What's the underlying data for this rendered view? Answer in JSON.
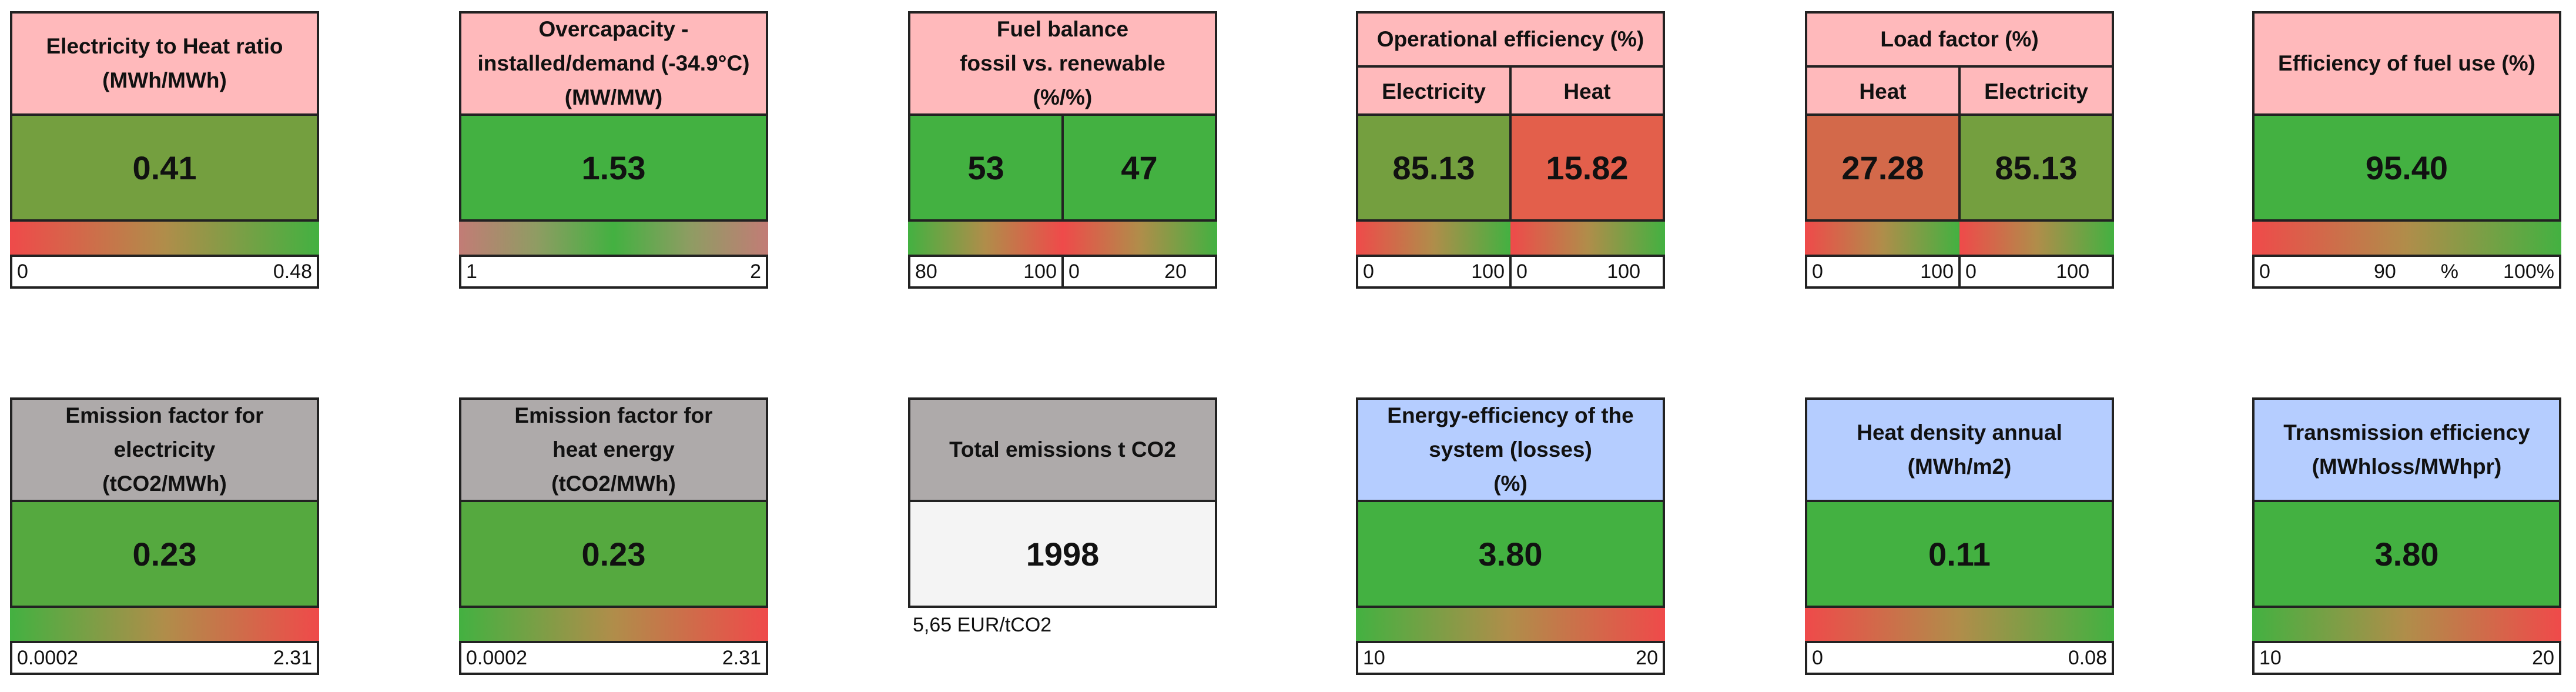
{
  "colors": {
    "header_pink": "#ffb9bb",
    "header_grey": "#aeaaaa",
    "header_blue": "#b5cdff",
    "good_green": "#43b141",
    "bad_red": "#ef5148",
    "olive": "#749f3f",
    "neutral_box": "#f4f4f4"
  },
  "cards": {
    "elec_heat_ratio": {
      "title": "Electricity to Heat ratio\n(MWh/MWh)",
      "value": "0.41",
      "scale_min": "0",
      "scale_max": "0.48"
    },
    "overcapacity": {
      "title": "Overcapacity -\ninstalled/demand (-34.9°C)\n(MW/MW)",
      "value": "1.53",
      "scale_min": "1",
      "scale_max": "2"
    },
    "fuel_balance": {
      "title": "Fuel balance\nfossil vs. renewable\n(%/%)",
      "value_fossil": "53",
      "value_renewable": "47",
      "scale1_a": "80",
      "scale1_b": "100",
      "scale2_a": "0",
      "scale2_b": "20"
    },
    "operational_efficiency": {
      "title": "Operational efficiency (%)",
      "sub1": "Electricity",
      "sub2": "Heat",
      "value1": "85.13",
      "value2": "15.82",
      "scale1_min": "0",
      "scale1_max": "100",
      "scale2_min": "0",
      "scale2_max": "100"
    },
    "load_factor": {
      "title": "Load factor (%)",
      "sub1": "Heat",
      "sub2": "Electricity",
      "value1": "27.28",
      "value2": "85.13",
      "scale1_min": "0",
      "scale1_max": "100",
      "scale2_min": "0",
      "scale2_max": "100"
    },
    "fuel_use_efficiency": {
      "title": "Efficiency of fuel use (%)",
      "value": "95.40",
      "scale_min": "0",
      "scale_mid": "90",
      "scale_unit": "%",
      "scale_max": "100%"
    },
    "ef_electricity": {
      "title": "Emission factor for\nelectricity\n(tCO2/MWh)",
      "value": "0.23",
      "scale_min": "0.0002",
      "scale_max": "2.31"
    },
    "ef_heat": {
      "title": "Emission factor for\nheat energy\n(tCO2/MWh)",
      "value": "0.23",
      "scale_min": "0.0002",
      "scale_max": "2.31"
    },
    "total_emissions": {
      "title": "Total emissions t CO2",
      "value": "1998",
      "note": "5,65 EUR/tCO2"
    },
    "energy_efficiency": {
      "title": "Energy-efficiency of the\nsystem (losses)\n(%)",
      "value": "3.80",
      "scale_min": "10",
      "scale_max": "20"
    },
    "heat_density": {
      "title": "Heat density annual\n(MWh/m2)",
      "value": "0.11",
      "scale_min": "0",
      "scale_max": "0.08"
    },
    "transmission_efficiency": {
      "title": "Transmission efficiency\n(MWhloss/MWhpr)",
      "value": "3.80",
      "scale_min": "10",
      "scale_max": "20"
    }
  }
}
